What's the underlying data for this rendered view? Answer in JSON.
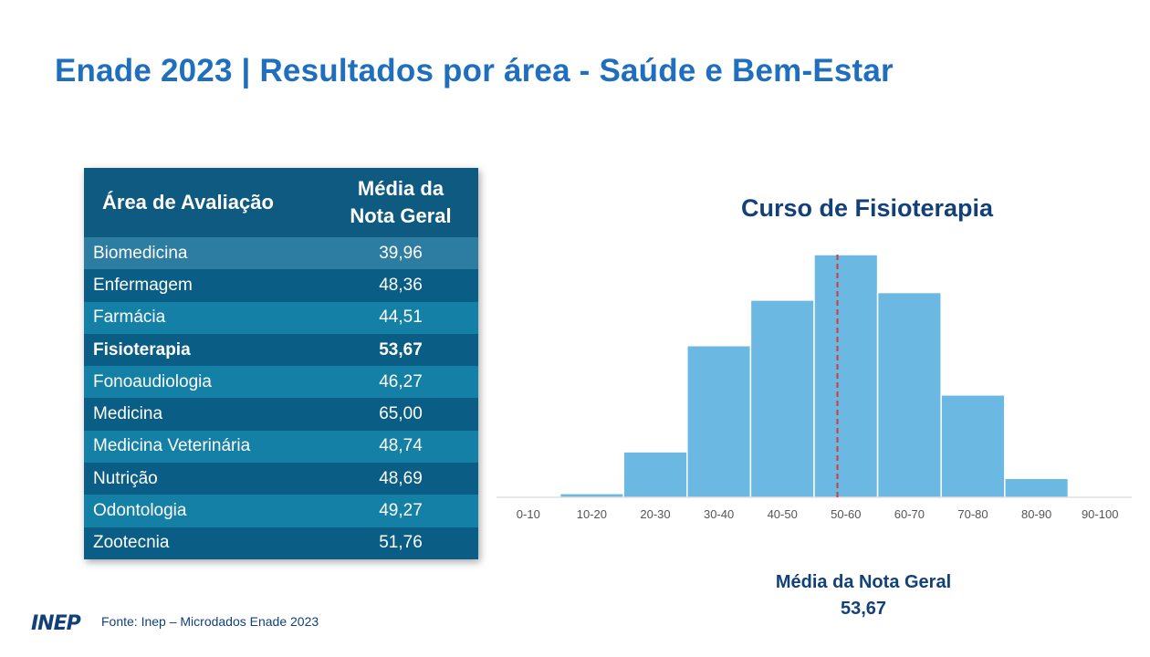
{
  "page": {
    "title": "Enade 2023 | Resultados por área - Saúde e Bem-Estar",
    "source": "Fonte: Inep – Microdados Enade 2023",
    "logo_text": "INEP"
  },
  "table": {
    "header_area": "Área de Avaliação",
    "header_media_line1": "Média da",
    "header_media_line2": "Nota Geral",
    "rows": [
      {
        "area": "Biomedicina",
        "value": "39,96",
        "bold": false,
        "bg": "#2d7ca1"
      },
      {
        "area": "Enfermagem",
        "value": "48,36",
        "bold": false,
        "bg": "#0a5e86"
      },
      {
        "area": "Farmácia",
        "value": "44,51",
        "bold": false,
        "bg": "#1480a6"
      },
      {
        "area": "Fisioterapia",
        "value": "53,67",
        "bold": true,
        "bg": "#0a5e86"
      },
      {
        "area": "Fonoaudiologia",
        "value": "46,27",
        "bold": false,
        "bg": "#1480a6"
      },
      {
        "area": "Medicina",
        "value": "65,00",
        "bold": false,
        "bg": "#0a5e86"
      },
      {
        "area": "Medicina Veterinária",
        "value": "48,74",
        "bold": false,
        "bg": "#1480a6"
      },
      {
        "area": "Nutrição",
        "value": "48,69",
        "bold": false,
        "bg": "#0a5e86"
      },
      {
        "area": "Odontologia",
        "value": "49,27",
        "bold": false,
        "bg": "#1480a6"
      },
      {
        "area": "Zootecnia",
        "value": "51,76",
        "bold": false,
        "bg": "#0a5e86"
      }
    ]
  },
  "chart_data": {
    "type": "bar",
    "title": "Curso de Fisioterapia",
    "categories": [
      "0-10",
      "10-20",
      "20-30",
      "30-40",
      "40-50",
      "50-60",
      "60-70",
      "70-80",
      "80-90",
      "90-100"
    ],
    "values": [
      0,
      1,
      12,
      40,
      52,
      64,
      54,
      27,
      5,
      0
    ],
    "mean_value": 53.67,
    "mean_label_line1": "Média da Nota  Geral",
    "mean_label_line2": "53,67",
    "colors": {
      "bar": "#6bb8e3",
      "bar_edge": "#ffffff",
      "mean_line": "#d23a3a",
      "title": "#12407a",
      "axis": "#d0d0d0",
      "tick": "#555555"
    },
    "ylim": [
      0,
      64
    ],
    "grid": false,
    "legend": "none"
  }
}
